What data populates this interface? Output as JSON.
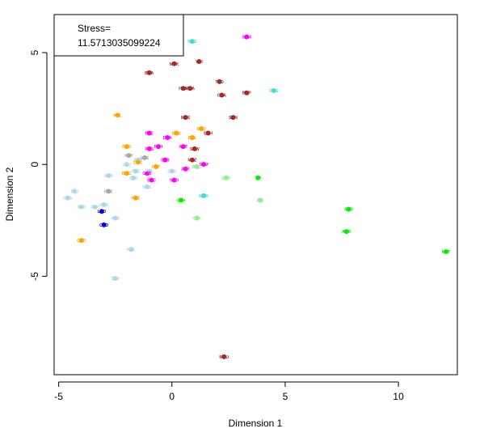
{
  "chart_data": {
    "type": "scatter",
    "xlabel": "Dimension 1",
    "ylabel": "Dimension 2",
    "xlim": [
      -5.2,
      12.6
    ],
    "ylim": [
      -9.4,
      6.7
    ],
    "xticks": [
      "-5",
      "0",
      "5",
      "10"
    ],
    "xtick_values": [
      -5,
      0,
      5,
      10
    ],
    "yticks": [
      "-5",
      "0",
      "5"
    ],
    "ytick_values": [
      -5,
      0,
      5
    ],
    "legend": {
      "line1": "Stress=",
      "line2": "11.5713035099224",
      "placement": "top-left"
    },
    "points": [
      {
        "label": "NOG",
        "x": 0.9,
        "y": 5.5,
        "color": "#40E0D0"
      },
      {
        "label": "SOM",
        "x": 3.3,
        "y": 5.7,
        "color": "#FF00FF"
      },
      {
        "label": "MOK",
        "x": 0.1,
        "y": 4.5,
        "color": "#A52A2A"
      },
      {
        "label": "VOI",
        "x": 1.2,
        "y": 4.6,
        "color": "#A52A2A"
      },
      {
        "label": "BOA",
        "x": -1.0,
        "y": 4.1,
        "color": "#A52A2A"
      },
      {
        "label": "TOD",
        "x": 2.1,
        "y": 3.7,
        "color": "#A52A2A"
      },
      {
        "label": "HOA",
        "x": 0.5,
        "y": 3.4,
        "color": "#A52A2A"
      },
      {
        "label": "MOA",
        "x": 0.8,
        "y": 3.4,
        "color": "#A52A2A"
      },
      {
        "label": "BOP",
        "x": 3.3,
        "y": 3.2,
        "color": "#A52A2A"
      },
      {
        "label": "PDG",
        "x": 4.5,
        "y": 3.3,
        "color": "#40E0D0"
      },
      {
        "label": "COA",
        "x": 2.2,
        "y": 3.1,
        "color": "#A52A2A"
      },
      {
        "label": "KOL",
        "x": -2.4,
        "y": 2.2,
        "color": "#FFA500"
      },
      {
        "label": "MOS",
        "x": 0.6,
        "y": 2.1,
        "color": "#A52A2A"
      },
      {
        "label": "SON",
        "x": 2.7,
        "y": 2.1,
        "color": "#A52A2A"
      },
      {
        "label": "BOD",
        "x": 1.3,
        "y": 1.6,
        "color": "#FFA500"
      },
      {
        "label": "EOH",
        "x": 1.6,
        "y": 1.4,
        "color": "#A52A2A"
      },
      {
        "label": "FOE",
        "x": -1.0,
        "y": 1.4,
        "color": "#FF00FF"
      },
      {
        "label": "BOA",
        "x": 0.2,
        "y": 1.4,
        "color": "#FFA500"
      },
      {
        "label": "DOA",
        "x": -0.2,
        "y": 1.2,
        "color": "#FF00FF"
      },
      {
        "label": "BOL",
        "x": 0.9,
        "y": 1.2,
        "color": "#FFA500"
      },
      {
        "label": "POB",
        "x": -2.0,
        "y": 0.8,
        "color": "#FFA500"
      },
      {
        "label": "PGH",
        "x": -0.6,
        "y": 0.8,
        "color": "#FF00FF"
      },
      {
        "label": "AOT",
        "x": 0.5,
        "y": 0.8,
        "color": "#FF00FF"
      },
      {
        "label": "SOW",
        "x": 1.0,
        "y": 0.7,
        "color": "#A52A2A"
      },
      {
        "label": "POS",
        "x": -1.0,
        "y": 0.7,
        "color": "#FF00FF"
      },
      {
        "label": "KOY",
        "x": -1.9,
        "y": 0.4,
        "color": "#A9A9A9"
      },
      {
        "label": "EOS",
        "x": -1.2,
        "y": 0.3,
        "color": "#A9A9A9"
      },
      {
        "label": "BOB",
        "x": -1.5,
        "y": 0.2,
        "color": "#ADD8E6"
      },
      {
        "label": "SOB",
        "x": -0.3,
        "y": 0.2,
        "color": "#FF00FF"
      },
      {
        "label": "MOZ",
        "x": 0.9,
        "y": 0.2,
        "color": "#A52A2A"
      },
      {
        "label": "LOU",
        "x": -2.0,
        "y": 0.0,
        "color": "#ADD8E6"
      },
      {
        "label": "DOK",
        "x": -1.5,
        "y": 0.1,
        "color": "#FFA500"
      },
      {
        "label": "FOP",
        "x": -0.7,
        "y": -0.1,
        "color": "#FFA500"
      },
      {
        "label": "SOM",
        "x": 1.4,
        "y": 0.0,
        "color": "#FF00FF"
      },
      {
        "label": "AOK",
        "x": 0.6,
        "y": -0.2,
        "color": "#FF00FF"
      },
      {
        "label": "BOE",
        "x": -1.6,
        "y": -0.3,
        "color": "#ADD8E6"
      },
      {
        "label": "POK",
        "x": -1.0,
        "y": -0.3,
        "color": "#ADD8E6"
      },
      {
        "label": "BOG",
        "x": 1.1,
        "y": -0.1,
        "color": "#90EE90"
      },
      {
        "label": "COB",
        "x": -1.1,
        "y": -0.4,
        "color": "#FF00FF"
      },
      {
        "label": "SOO",
        "x": 0.0,
        "y": -0.3,
        "color": "#ADD8E6"
      },
      {
        "label": "BMG",
        "x": -2.0,
        "y": -0.4,
        "color": "#FFA500"
      },
      {
        "label": "HON",
        "x": -2.8,
        "y": -0.5,
        "color": "#ADD8E6"
      },
      {
        "label": "DUJ",
        "x": -1.7,
        "y": -0.6,
        "color": "#ADD8E6"
      },
      {
        "label": "MOY",
        "x": 2.4,
        "y": -0.6,
        "color": "#90EE90"
      },
      {
        "label": "TIP",
        "x": 3.8,
        "y": -0.6,
        "color": "#00EE00"
      },
      {
        "label": "BAC",
        "x": -0.9,
        "y": -0.7,
        "color": "#FF00FF"
      },
      {
        "label": "SOO",
        "x": 0.1,
        "y": -0.7,
        "color": "#FF00FF"
      },
      {
        "label": "KOZ",
        "x": -2.8,
        "y": -1.2,
        "color": "#A9A9A9"
      },
      {
        "label": "MUS",
        "x": -1.1,
        "y": -1.0,
        "color": "#ADD8E6"
      },
      {
        "label": "TOU",
        "x": -4.3,
        "y": -1.2,
        "color": "#ADD8E6"
      },
      {
        "label": "MOR",
        "x": 1.4,
        "y": -1.4,
        "color": "#40E0D0"
      },
      {
        "label": "HOA",
        "x": -4.6,
        "y": -1.5,
        "color": "#ADD8E6"
      },
      {
        "label": "HOZ",
        "x": -1.6,
        "y": -1.5,
        "color": "#FFA500"
      },
      {
        "label": "COH",
        "x": 0.4,
        "y": -1.6,
        "color": "#00EE00"
      },
      {
        "label": "PIB",
        "x": 3.9,
        "y": -1.6,
        "color": "#90EE90"
      },
      {
        "label": "AKB",
        "x": -4.0,
        "y": -1.9,
        "color": "#ADD8E6"
      },
      {
        "label": "AKR",
        "x": -3.4,
        "y": -1.9,
        "color": "#ADD8E6"
      },
      {
        "label": "KOB",
        "x": -3.0,
        "y": -1.8,
        "color": "#ADD8E6"
      },
      {
        "label": "LOD",
        "x": -3.1,
        "y": -2.1,
        "color": "#0000EE"
      },
      {
        "label": "AGR",
        "x": 7.8,
        "y": -2.0,
        "color": "#00EE00"
      },
      {
        "label": "CSY",
        "x": 1.1,
        "y": -2.4,
        "color": "#90EE90"
      },
      {
        "label": "KAB",
        "x": -2.5,
        "y": -2.4,
        "color": "#ADD8E6"
      },
      {
        "label": "COD",
        "x": -3.0,
        "y": -2.7,
        "color": "#0000EE"
      },
      {
        "label": "AOR",
        "x": 7.7,
        "y": -3.0,
        "color": "#00EE00"
      },
      {
        "label": "COD",
        "x": -4.0,
        "y": -3.4,
        "color": "#FFA500"
      },
      {
        "label": "KOL",
        "x": -1.8,
        "y": -3.8,
        "color": "#ADD8E6"
      },
      {
        "label": "KOT",
        "x": 12.1,
        "y": -3.9,
        "color": "#00EE00"
      },
      {
        "label": "DUJ",
        "x": -2.5,
        "y": -5.1,
        "color": "#ADD8E6"
      },
      {
        "label": "MOU",
        "x": 2.3,
        "y": -8.6,
        "color": "#A52A2A"
      }
    ]
  }
}
